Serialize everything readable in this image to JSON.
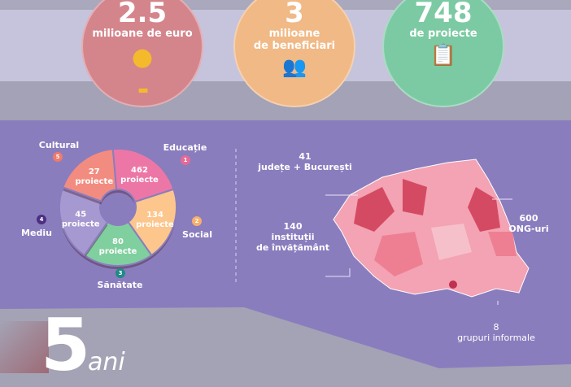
{
  "stats": [
    {
      "value": "2.5",
      "label": "milioane de euro",
      "color": "#d4858c",
      "icon": "coins-icon"
    },
    {
      "value": "3",
      "label1": "milioane",
      "label2": "de beneficiari",
      "color": "#f0b986",
      "icon": "people-icon"
    },
    {
      "value": "748",
      "label": "de proiecte",
      "color": "#7ccaa3",
      "icon": "clipboard-magnifier-icon"
    }
  ],
  "domains": [
    {
      "n": "1",
      "name": "Educație",
      "count": "462",
      "unit": "proiecte",
      "color": "#ec77a6",
      "badge": "#e66a95"
    },
    {
      "n": "2",
      "name": "Social",
      "count": "134",
      "unit": "proiecte",
      "color": "#fcc68d",
      "badge": "#f5b06c"
    },
    {
      "n": "3",
      "name": "Sănătate",
      "count": "80",
      "unit": "proiecte",
      "color": "#80cf9e",
      "badge": "#1f8a86"
    },
    {
      "n": "4",
      "name": "Mediu",
      "count": "45",
      "unit": "proiecte",
      "color": "#a698d0",
      "badge": "#4c2f82"
    },
    {
      "n": "5",
      "name": "Cultural",
      "count": "27",
      "unit": "proiecte",
      "color": "#f38c80",
      "badge": "#f07a6c"
    }
  ],
  "map": {
    "counties": {
      "num": "41",
      "label": "județe + București"
    },
    "schools": {
      "num": "140",
      "label1": "instituții",
      "label2": "de învățământ"
    },
    "ngos": {
      "num": "600",
      "label": "ONG-uri"
    },
    "groups": {
      "num": "8",
      "label": "grupuri informale"
    },
    "colors": {
      "light": "#f3a3b3",
      "mid": "#ee7f92",
      "dark": "#d54a63"
    }
  },
  "footer": {
    "big": "5",
    "small": "ani"
  }
}
